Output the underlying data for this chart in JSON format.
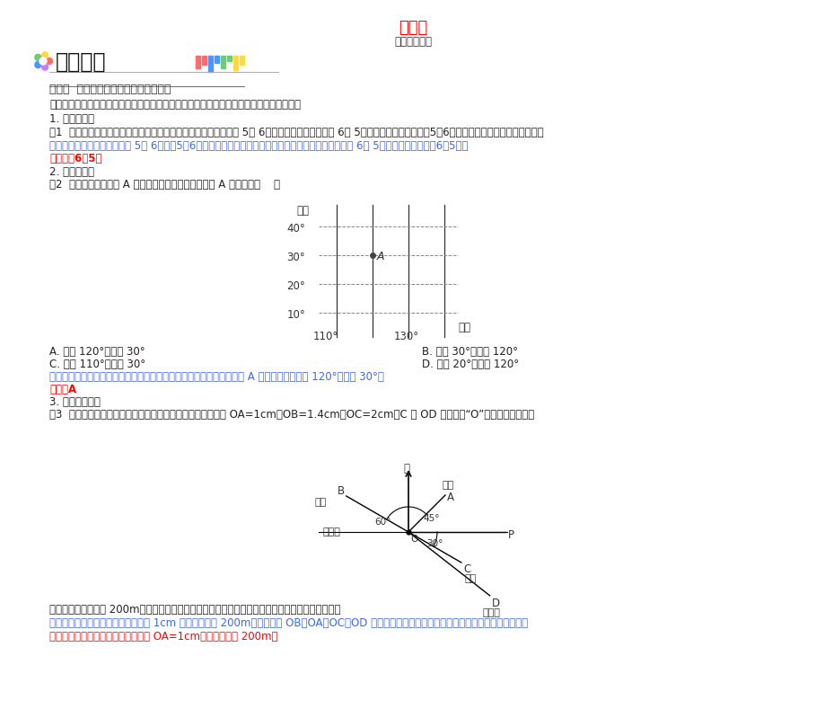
{
  "title": "第七章",
  "subtitle": "章末知识汇总",
  "title_color": "#FF0000",
  "subtitle_color": "#333333",
  "bg_color": "#FFFFFF",
  "heading": "题型必会",
  "section1": "类型一  实际生活中确定位置的常用方法",
  "para1": "确定一个物体的位置的方法由多种，但不管用哪种方法，确定物体位置时一般需要两个量。",
  "sub1": "1. 排数＋列数",
  "example1": "例1  小明和小亮同去市科技馆参加科技报告会，小明的入场券写着 5排 6号，而小亮的入场券写着 6排 5号，若小明的座位记作（5，6），那么小亮的座位记作＿＿＿。",
  "analysis1": "解析：因为小明的入场券写着 5排 6号用（5，6）表示，即排数在前，列数在后，所以小亮的入场券写着 6排 5号，就可以表示为（6，5）。",
  "answer1": "答案：（6，5）",
  "sub2": "2. 经度＋纬度",
  "example2": "例2  如图，已知某城市 A 在地球上的位置如图，则城市 A 的位置在（    ）",
  "options_A": "A. 东经 120°，北纬 30°",
  "options_B": "B. 东经 30°，北纬 120°",
  "options_C": "C. 东经 110°，北纬 30°",
  "options_D": "D. 东经 20°，北纬 120°",
  "analysis2": "解析：地球上是通过用经度和纬度来表示城市的位置的，由图可知城市 A 所在的位置是东经 120°，北纬 30°。",
  "answer2": "答案：A",
  "sub3": "3. 方位角＋距离",
  "example3": "例3  如图所示是小明家和学校所在地的简略图。已知图上距离 OA=1cm，OB=1.4cm，OC=2cm，C 为 OD 的中点（“O”处表示小明家）。",
  "analysis3_q": "已知学校距离小明家 200m，那么以小明家为观测点，商场、学校、公园、停车场分别在什么位置？",
  "analysis3_body": "解析：以小明家为参照点，先由图中 1cm 代表实际距离 200m，可计算出 OB、OA、OC、OD 的实际距离，再确定方位角，就可确定各场所的位置了。",
  "answer3": "解：因为学校距小明家的图上距离为 OA=1cm，实际距离为 200m。"
}
